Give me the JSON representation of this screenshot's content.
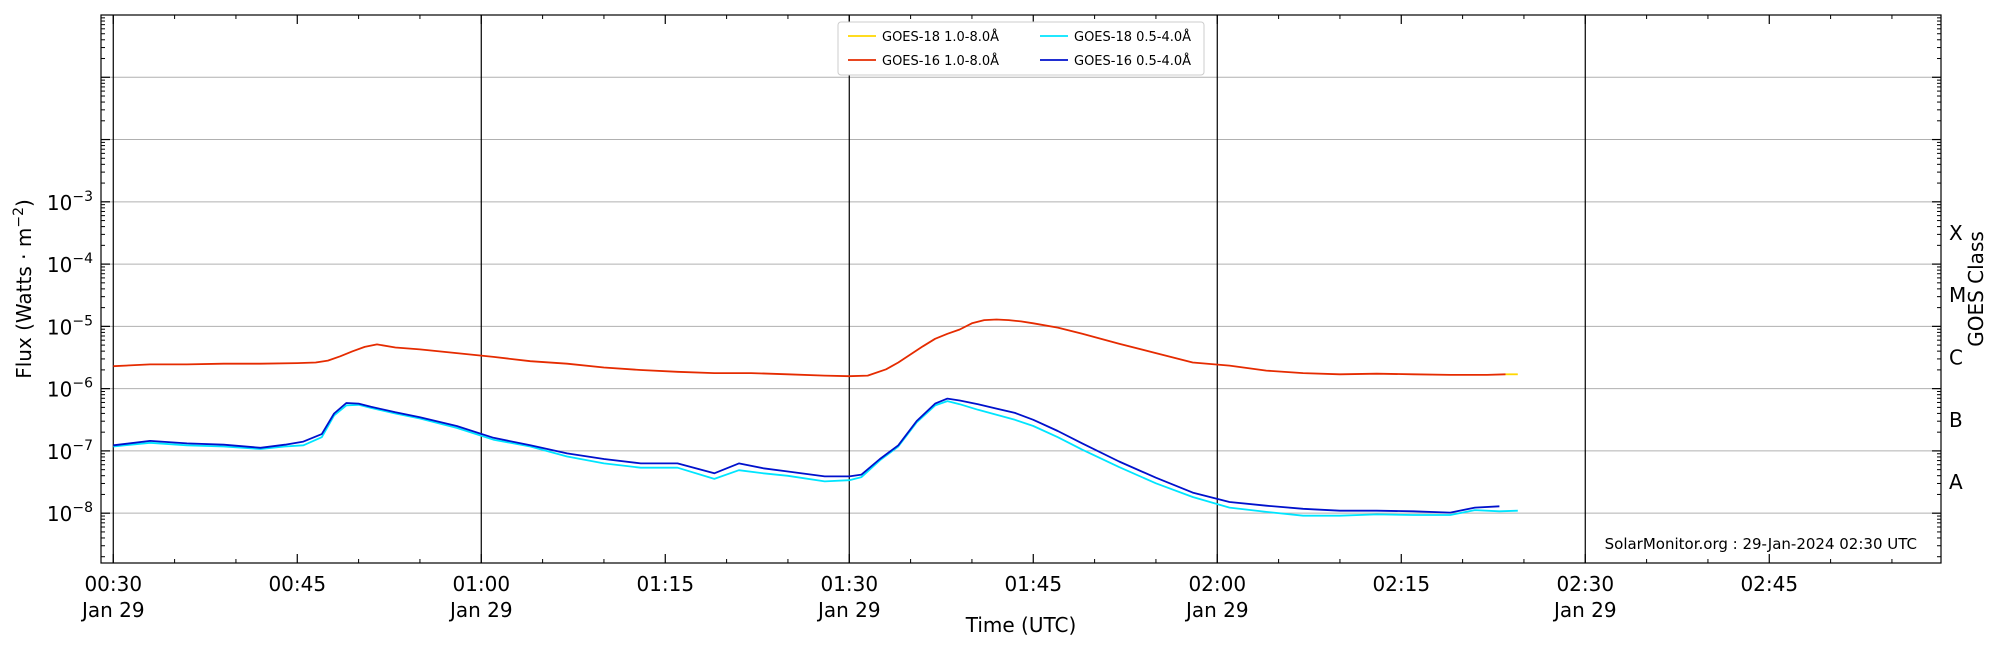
{
  "chart_data": {
    "type": "line",
    "xlabel": "Time (UTC)",
    "ylabel_text": "Flux (Watts · m",
    "ylabel_sup": "−2",
    "ylabel_close": ")",
    "right_label": "GOES Class",
    "credit": "SolarMonitor.org : 29-Jan-2024 02:30 UTC",
    "x_unit": "minutes after 00:30 UTC, 29-Jan-2024",
    "xlim": [
      -1,
      149
    ],
    "ylim_log10": [
      -8.8,
      0.0
    ],
    "scale": "log",
    "grid": "horizontal at decades",
    "legend_position": "top-center",
    "x_ticks": [
      {
        "t": 0,
        "time": "00:30",
        "date": "Jan 29"
      },
      {
        "t": 15,
        "time": "00:45",
        "date": ""
      },
      {
        "t": 30,
        "time": "01:00",
        "date": "Jan 29"
      },
      {
        "t": 45,
        "time": "01:15",
        "date": ""
      },
      {
        "t": 60,
        "time": "01:30",
        "date": "Jan 29"
      },
      {
        "t": 75,
        "time": "01:45",
        "date": ""
      },
      {
        "t": 90,
        "time": "02:00",
        "date": "Jan 29"
      },
      {
        "t": 105,
        "time": "02:15",
        "date": ""
      },
      {
        "t": 120,
        "time": "02:30",
        "date": "Jan 29"
      },
      {
        "t": 135,
        "time": "02:45",
        "date": ""
      }
    ],
    "vertical_lines": [
      0,
      30,
      60,
      90,
      120
    ],
    "y_ticks": [
      {
        "exp": -3,
        "label": "10",
        "sup": "−3"
      },
      {
        "exp": -4,
        "label": "10",
        "sup": "−4"
      },
      {
        "exp": -5,
        "label": "10",
        "sup": "−5"
      },
      {
        "exp": -6,
        "label": "10",
        "sup": "−6"
      },
      {
        "exp": -7,
        "label": "10",
        "sup": "−7"
      },
      {
        "exp": -8,
        "label": "10",
        "sup": "−8"
      }
    ],
    "goes_classes": [
      {
        "label": "X",
        "log10": -3.5
      },
      {
        "label": "M",
        "log10": -4.5
      },
      {
        "label": "C",
        "log10": -5.5
      },
      {
        "label": "B",
        "log10": -6.5
      },
      {
        "label": "A",
        "log10": -7.5
      }
    ],
    "series": [
      {
        "name": "GOES-18 1.0-8.0Å",
        "color": "#ffd700",
        "t": [
          113.5,
          114.5
        ],
        "log10": [
          -5.77,
          -5.77
        ]
      },
      {
        "name": "GOES-16 1.0-8.0Å",
        "color": "#e52b00",
        "t": [
          0,
          3,
          6,
          9,
          12,
          15,
          16.5,
          17.5,
          18.5,
          19.5,
          20.5,
          21.5,
          23,
          25,
          28,
          31,
          34,
          37,
          40,
          43,
          46,
          49,
          52,
          55,
          58,
          60,
          61.5,
          63,
          64,
          65,
          66,
          67,
          68,
          69,
          70,
          71,
          72,
          73,
          74,
          75,
          77,
          79,
          82,
          85,
          88,
          91,
          94,
          97,
          100,
          103,
          106,
          109,
          112,
          113.5
        ],
        "log10": [
          -5.64,
          -5.61,
          -5.61,
          -5.6,
          -5.6,
          -5.59,
          -5.58,
          -5.55,
          -5.48,
          -5.4,
          -5.33,
          -5.29,
          -5.34,
          -5.37,
          -5.43,
          -5.49,
          -5.56,
          -5.6,
          -5.66,
          -5.7,
          -5.73,
          -5.75,
          -5.75,
          -5.77,
          -5.79,
          -5.8,
          -5.79,
          -5.69,
          -5.58,
          -5.45,
          -5.32,
          -5.2,
          -5.12,
          -5.05,
          -4.95,
          -4.9,
          -4.89,
          -4.9,
          -4.92,
          -4.95,
          -5.02,
          -5.12,
          -5.28,
          -5.43,
          -5.58,
          -5.63,
          -5.71,
          -5.75,
          -5.77,
          -5.76,
          -5.77,
          -5.78,
          -5.78,
          -5.77
        ]
      },
      {
        "name": "GOES-18 0.5-4.0Å",
        "color": "#00e5ff",
        "t": [
          0,
          3,
          6,
          9,
          12,
          14,
          15.5,
          17,
          18,
          19,
          20,
          21,
          23,
          25,
          28,
          31,
          34,
          37,
          40,
          43,
          46,
          49,
          51,
          53,
          55,
          58,
          60,
          61,
          62.5,
          64,
          65.5,
          67,
          68,
          69,
          70.5,
          72,
          73.5,
          75,
          77,
          79,
          82,
          85,
          88,
          91,
          94,
          97,
          100,
          103,
          106,
          109,
          111,
          113,
          114.5
        ],
        "log10": [
          -6.93,
          -6.87,
          -6.91,
          -6.93,
          -6.97,
          -6.93,
          -6.91,
          -6.78,
          -6.43,
          -6.27,
          -6.26,
          -6.31,
          -6.4,
          -6.48,
          -6.63,
          -6.82,
          -6.93,
          -7.09,
          -7.2,
          -7.27,
          -7.27,
          -7.45,
          -7.31,
          -7.36,
          -7.4,
          -7.49,
          -7.47,
          -7.42,
          -7.15,
          -6.93,
          -6.54,
          -6.27,
          -6.2,
          -6.25,
          -6.34,
          -6.42,
          -6.5,
          -6.6,
          -6.78,
          -6.98,
          -7.26,
          -7.52,
          -7.74,
          -7.91,
          -7.98,
          -8.04,
          -8.04,
          -8.02,
          -8.03,
          -8.03,
          -7.95,
          -7.97,
          -7.96
        ]
      },
      {
        "name": "GOES-16 0.5-4.0Å",
        "color": "#0011cc",
        "t": [
          0,
          3,
          6,
          9,
          12,
          14,
          15.5,
          17,
          18,
          19,
          20,
          21,
          23,
          25,
          28,
          31,
          34,
          37,
          40,
          43,
          46,
          49,
          51,
          53,
          55,
          58,
          60,
          61,
          62.5,
          64,
          65.5,
          67,
          68,
          69,
          70.5,
          72,
          73.5,
          75,
          77,
          79,
          82,
          85,
          88,
          91,
          94,
          97,
          100,
          103,
          106,
          109,
          111,
          113
        ],
        "log10": [
          -6.91,
          -6.84,
          -6.88,
          -6.9,
          -6.95,
          -6.9,
          -6.85,
          -6.73,
          -6.4,
          -6.23,
          -6.24,
          -6.29,
          -6.38,
          -6.46,
          -6.6,
          -6.79,
          -6.91,
          -7.04,
          -7.13,
          -7.2,
          -7.2,
          -7.36,
          -7.2,
          -7.28,
          -7.33,
          -7.41,
          -7.41,
          -7.38,
          -7.13,
          -6.91,
          -6.52,
          -6.24,
          -6.16,
          -6.19,
          -6.25,
          -6.32,
          -6.39,
          -6.5,
          -6.68,
          -6.88,
          -7.17,
          -7.43,
          -7.67,
          -7.82,
          -7.88,
          -7.93,
          -7.96,
          -7.96,
          -7.97,
          -7.99,
          -7.91,
          -7.89
        ]
      }
    ]
  }
}
